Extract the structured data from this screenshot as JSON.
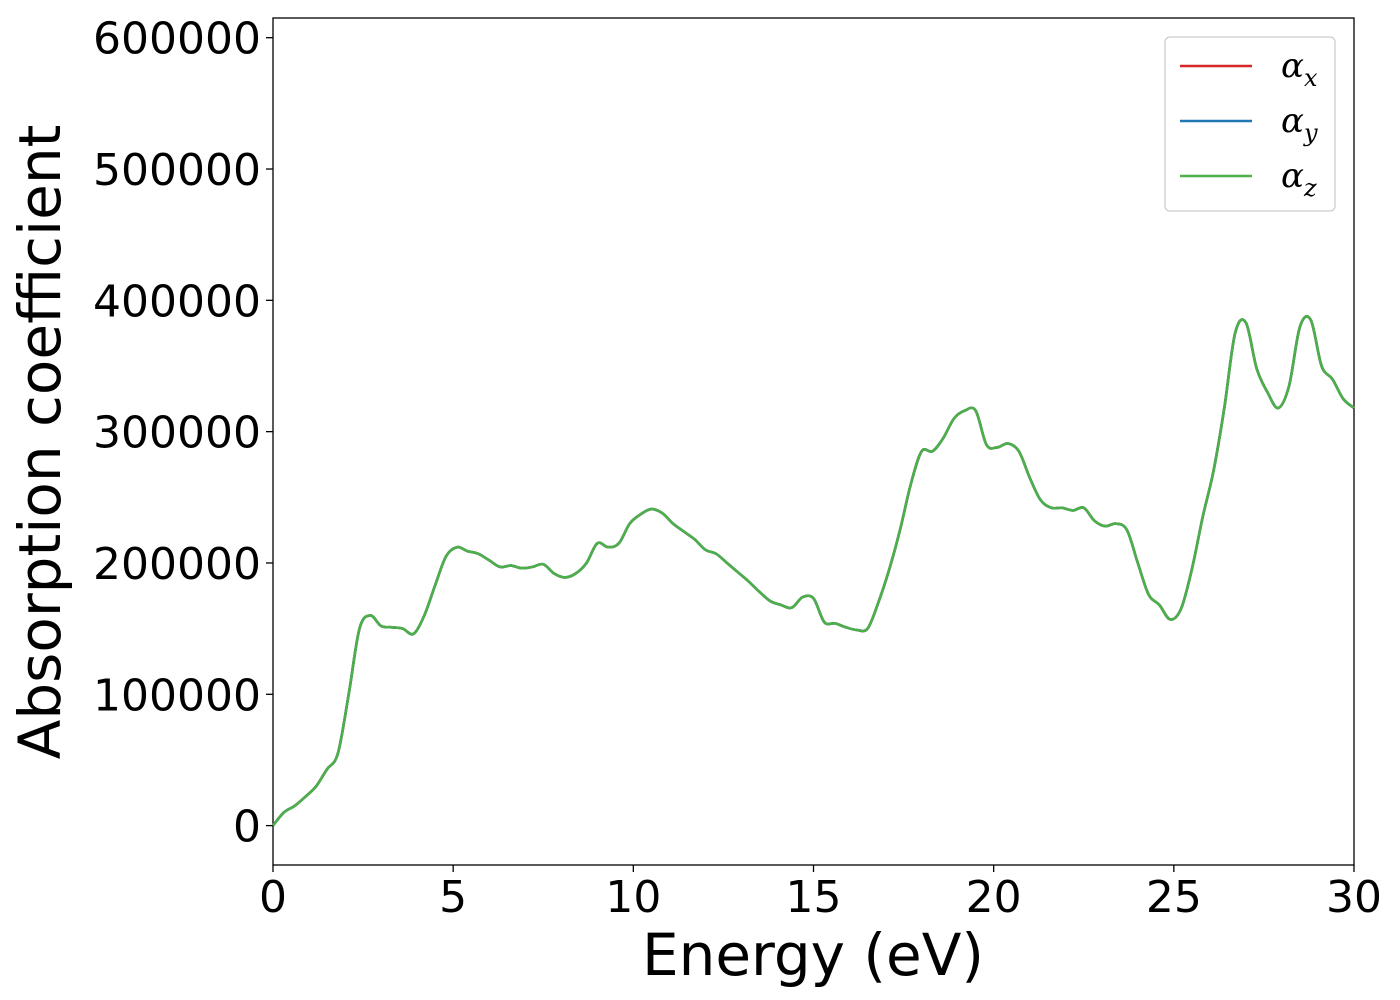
{
  "chart_data": {
    "type": "line",
    "xlabel": "Energy (eV)",
    "ylabel": "Absorption coefficient",
    "xlim": [
      0,
      30
    ],
    "ylim": [
      -30000,
      615000
    ],
    "xticks": [
      0,
      5,
      10,
      15,
      20,
      25,
      30
    ],
    "yticks": [
      0,
      100000,
      200000,
      300000,
      400000,
      500000,
      600000
    ],
    "xtick_labels": [
      "0",
      "5",
      "10",
      "15",
      "20",
      "25",
      "30"
    ],
    "ytick_labels": [
      "0",
      "100000",
      "200000",
      "300000",
      "400000",
      "500000",
      "600000"
    ],
    "grid": false,
    "legend_position": "top-right",
    "x": [
      0,
      0.3,
      0.6,
      0.9,
      1.2,
      1.5,
      1.8,
      2.1,
      2.4,
      2.7,
      3.0,
      3.3,
      3.6,
      3.9,
      4.2,
      4.5,
      4.8,
      5.1,
      5.4,
      5.7,
      6.0,
      6.3,
      6.6,
      6.9,
      7.2,
      7.5,
      7.8,
      8.1,
      8.4,
      8.7,
      9.0,
      9.3,
      9.6,
      9.9,
      10.2,
      10.5,
      10.8,
      11.1,
      11.4,
      11.7,
      12.0,
      12.3,
      12.6,
      12.9,
      13.2,
      13.5,
      13.8,
      14.1,
      14.4,
      14.7,
      15.0,
      15.3,
      15.6,
      15.9,
      16.2,
      16.5,
      16.8,
      17.1,
      17.4,
      17.7,
      18.0,
      18.3,
      18.6,
      18.9,
      19.2,
      19.5,
      19.8,
      20.1,
      20.4,
      20.7,
      21.0,
      21.3,
      21.6,
      21.9,
      22.2,
      22.5,
      22.8,
      23.1,
      23.4,
      23.7,
      24.0,
      24.3,
      24.6,
      24.9,
      25.2,
      25.5,
      25.8,
      26.1,
      26.4,
      26.7,
      27.0,
      27.3,
      27.6,
      27.9,
      28.2,
      28.5,
      28.8,
      29.1,
      29.4,
      29.7,
      30.0
    ],
    "series": [
      {
        "name": "α",
        "subscript": "x",
        "color": "#d62728",
        "values": [
          0,
          10000,
          15000,
          22000,
          30000,
          43000,
          55000,
          100000,
          150000,
          160000,
          152000,
          151000,
          150000,
          146000,
          160000,
          183000,
          205000,
          212000,
          209000,
          207000,
          202000,
          197000,
          198000,
          196000,
          197000,
          199000,
          192000,
          189000,
          192000,
          200000,
          215000,
          212000,
          215000,
          230000,
          237000,
          241000,
          238000,
          230000,
          224000,
          218000,
          210000,
          207000,
          200000,
          193000,
          186000,
          178000,
          171000,
          168000,
          166000,
          174000,
          173000,
          155000,
          154000,
          151000,
          149000,
          150000,
          170000,
          195000,
          225000,
          260000,
          285000,
          285000,
          295000,
          310000,
          316000,
          316000,
          290000,
          288000,
          291000,
          285000,
          265000,
          248000,
          242000,
          242000,
          240000,
          242000,
          232000,
          228000,
          230000,
          225000,
          200000,
          176000,
          168000,
          157000,
          165000,
          195000,
          235000,
          270000,
          318000,
          375000,
          383000,
          348000,
          330000,
          318000,
          335000,
          380000,
          385000,
          350000,
          340000,
          325000,
          318000
        ]
      },
      {
        "name": "α",
        "subscript": "y",
        "color": "#1f77b4",
        "values": [
          0,
          10000,
          15000,
          22000,
          30000,
          43000,
          55000,
          100000,
          150000,
          160000,
          152000,
          151000,
          150000,
          146000,
          160000,
          183000,
          205000,
          212000,
          209000,
          207000,
          202000,
          197000,
          198000,
          196000,
          197000,
          199000,
          192000,
          189000,
          192000,
          200000,
          215000,
          212000,
          215000,
          230000,
          237000,
          241000,
          238000,
          230000,
          224000,
          218000,
          210000,
          207000,
          200000,
          193000,
          186000,
          178000,
          171000,
          168000,
          166000,
          174000,
          173000,
          155000,
          154000,
          151000,
          149000,
          150000,
          170000,
          195000,
          225000,
          260000,
          285000,
          285000,
          295000,
          310000,
          316000,
          316000,
          290000,
          288000,
          291000,
          285000,
          265000,
          248000,
          242000,
          242000,
          240000,
          242000,
          232000,
          228000,
          230000,
          225000,
          200000,
          176000,
          168000,
          157000,
          165000,
          195000,
          235000,
          270000,
          318000,
          375000,
          383000,
          348000,
          330000,
          318000,
          335000,
          380000,
          385000,
          350000,
          340000,
          325000,
          318000
        ]
      },
      {
        "name": "α",
        "subscript": "z",
        "color": "#4daf4a",
        "values": [
          0,
          10000,
          15000,
          22000,
          30000,
          43000,
          55000,
          100000,
          150000,
          160000,
          152000,
          151000,
          150000,
          146000,
          160000,
          183000,
          205000,
          212000,
          209000,
          207000,
          202000,
          197000,
          198000,
          196000,
          197000,
          199000,
          192000,
          189000,
          192000,
          200000,
          215000,
          212000,
          215000,
          230000,
          237000,
          241000,
          238000,
          230000,
          224000,
          218000,
          210000,
          207000,
          200000,
          193000,
          186000,
          178000,
          171000,
          168000,
          166000,
          174000,
          173000,
          155000,
          154000,
          151000,
          149000,
          150000,
          170000,
          195000,
          225000,
          260000,
          285000,
          285000,
          295000,
          310000,
          316000,
          316000,
          290000,
          288000,
          291000,
          285000,
          265000,
          248000,
          242000,
          242000,
          240000,
          242000,
          232000,
          228000,
          230000,
          225000,
          200000,
          176000,
          168000,
          157000,
          165000,
          195000,
          235000,
          270000,
          318000,
          375000,
          383000,
          348000,
          330000,
          318000,
          335000,
          380000,
          385000,
          350000,
          340000,
          325000,
          318000
        ]
      }
    ]
  }
}
